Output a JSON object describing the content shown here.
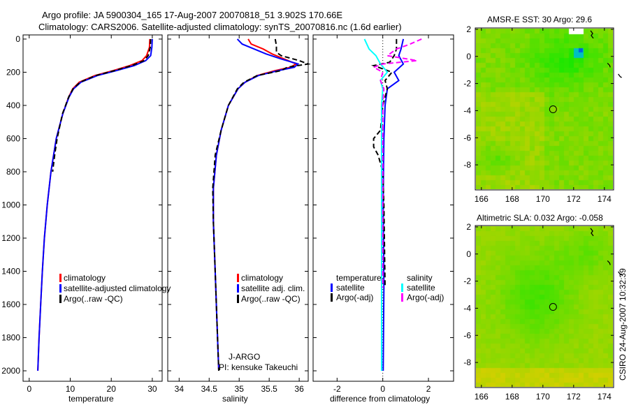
{
  "title_line1": "Argo profile: JA 5900304_165 17-Aug-2007 20070818_51 3.902S 170.66E",
  "title_line2": "Climatology: CARS2006. Satellite-adjusted climatology: synTS_20070816.nc (1.6d earlier)",
  "footer_stamp": "CSIRO 24-Aug-2007 10:32:39",
  "chart_data": [
    {
      "type": "line",
      "id": "temperature",
      "xlabel": "temperature",
      "ylabel": "",
      "xlim": [
        -1.5,
        32.4
      ],
      "ylim": [
        2063,
        -25
      ],
      "xticks": [
        0,
        10,
        20,
        30
      ],
      "yticks": [
        0,
        200,
        400,
        600,
        800,
        1000,
        1200,
        1400,
        1600,
        1800,
        2000
      ],
      "legend": [
        "climatology",
        "satellite-adjusted climatology",
        "Argo(..raw -QC)"
      ],
      "series": [
        {
          "name": "climatology",
          "color": "#ff0000",
          "dash": false,
          "depth": [
            0,
            50,
            100,
            130,
            160,
            190,
            220,
            260,
            300,
            350,
            450,
            600,
            800,
            1000,
            1200,
            1400,
            1600,
            1800,
            2000
          ],
          "values": [
            29.4,
            29.3,
            28.6,
            27.5,
            24.5,
            20.5,
            16,
            12.2,
            10.6,
            9.6,
            8.2,
            6.6,
            5.3,
            4.4,
            3.7,
            3.2,
            2.8,
            2.4,
            2.1
          ]
        },
        {
          "name": "satellite-adjusted climatology",
          "color": "#0000ff",
          "dash": false,
          "depth": [
            0,
            50,
            100,
            130,
            160,
            190,
            220,
            260,
            300,
            350,
            450,
            600,
            800,
            1000,
            1200,
            1400,
            1600,
            1800,
            2000
          ],
          "values": [
            30.0,
            29.9,
            29.6,
            28.4,
            25.6,
            21.2,
            16.6,
            12.6,
            10.8,
            9.7,
            8.2,
            6.6,
            5.3,
            4.4,
            3.7,
            3.2,
            2.8,
            2.4,
            2.1
          ]
        },
        {
          "name": "Argo(..raw -QC)",
          "color": "#000000",
          "dash": true,
          "depth": [
            0,
            50,
            100,
            130,
            160,
            190,
            220,
            260,
            300,
            350,
            450,
            600,
            700,
            800
          ],
          "values": [
            29.6,
            29.5,
            29.0,
            28.0,
            25.0,
            20.8,
            16.2,
            12.4,
            10.7,
            9.6,
            8.1,
            6.8,
            6.2,
            5.7
          ]
        }
      ]
    },
    {
      "type": "line",
      "id": "salinity",
      "xlabel": "salinity",
      "xlim": [
        33.81,
        36.15
      ],
      "ylim": [
        2063,
        -25
      ],
      "xticks": [
        34,
        34.5,
        35,
        35.5,
        36
      ],
      "legend": [
        "climatology",
        "satellite adj. clim.",
        "Argo(..raw -QC)"
      ],
      "annotation": [
        "J-ARGO",
        "PI: kensuke Takeuchi"
      ],
      "series": [
        {
          "name": "climatology",
          "color": "#ff0000",
          "dash": false,
          "depth": [
            0,
            30,
            60,
            90,
            120,
            150,
            170,
            190,
            220,
            260,
            300,
            400,
            550,
            700,
            900,
            1100,
            1400,
            1700,
            2000
          ],
          "values": [
            35.15,
            35.2,
            35.4,
            35.55,
            35.75,
            35.95,
            35.85,
            35.6,
            35.3,
            35.1,
            34.98,
            34.82,
            34.7,
            34.62,
            34.57,
            34.57,
            34.6,
            34.63,
            34.66
          ]
        },
        {
          "name": "satellite adj. clim.",
          "color": "#0000ff",
          "dash": false,
          "depth": [
            0,
            30,
            60,
            90,
            120,
            150,
            170,
            190,
            220,
            260,
            300,
            400,
            550,
            700,
            900,
            1100,
            1400,
            1700,
            2000
          ],
          "values": [
            34.97,
            35.05,
            35.25,
            35.45,
            35.7,
            35.98,
            35.92,
            35.65,
            35.32,
            35.1,
            34.98,
            34.82,
            34.7,
            34.62,
            34.57,
            34.57,
            34.6,
            34.63,
            34.66
          ]
        },
        {
          "name": "Argo(..raw -QC)",
          "color": "#000000",
          "dash": true,
          "depth": [
            0,
            40,
            80,
            100,
            130,
            150,
            170,
            190,
            220,
            260,
            300,
            400,
            550,
            700,
            900,
            1100,
            1400,
            1700,
            2000
          ],
          "values": [
            35.6,
            35.62,
            35.62,
            35.7,
            36.0,
            36.15,
            35.8,
            35.7,
            35.3,
            35.08,
            34.97,
            34.82,
            34.7,
            34.6,
            34.56,
            34.57,
            34.6,
            34.63,
            34.66
          ]
        }
      ]
    },
    {
      "type": "line",
      "id": "difference",
      "xlabel": "difference from climatology",
      "xlim": [
        -3.05,
        3.1
      ],
      "ylim": [
        2063,
        -25
      ],
      "xticks": [
        -2,
        0,
        2
      ],
      "legend_temperature_header": "temperature",
      "legend_salinity_header": "salinity",
      "legend": [
        "satellite",
        "Argo(-adj)",
        "satellite",
        "Argo(-adj)"
      ],
      "series": [
        {
          "name": "temperature satellite",
          "color": "#0000ff",
          "dash": false,
          "depth": [
            0,
            60,
            100,
            150,
            200,
            250,
            300,
            400,
            600,
            800,
            1000,
            1500,
            2000
          ],
          "values": [
            0.9,
            0.8,
            0.7,
            0.9,
            0.5,
            0.7,
            0.2,
            0.1,
            0.05,
            0.03,
            0.02,
            0.05,
            0.02
          ]
        },
        {
          "name": "temperature Argo(-adj)",
          "color": "#000000",
          "dash": true,
          "depth": [
            0,
            60,
            100,
            140,
            160,
            200,
            250,
            300,
            400,
            550,
            600,
            650,
            700,
            800,
            1000,
            1500
          ],
          "values": [
            0.6,
            0.6,
            0.5,
            0.3,
            -0.4,
            0.4,
            0.1,
            0.2,
            0.0,
            -0.1,
            -0.4,
            -0.4,
            -0.2,
            0.0,
            0.05,
            0.1
          ]
        },
        {
          "name": "salinity satellite",
          "color": "#00ffff",
          "dash": false,
          "depth": [
            0,
            60,
            100,
            150,
            200,
            250,
            300,
            400,
            600,
            800,
            1000,
            1500,
            2000
          ],
          "values": [
            -0.8,
            -0.6,
            -0.3,
            -0.1,
            0.2,
            -0.1,
            0.0,
            -0.05,
            -0.05,
            -0.05,
            -0.05,
            -0.05,
            -0.05
          ]
        },
        {
          "name": "salinity Argo(-adj)",
          "color": "#ff00ff",
          "dash": true,
          "depth": [
            0,
            30,
            60,
            100,
            130,
            150,
            170,
            200,
            250,
            300,
            400,
            800,
            1500
          ],
          "values": [
            1.7,
            1.2,
            0.6,
            0.2,
            1.5,
            0.0,
            -0.4,
            0.0,
            -0.1,
            0.05,
            0.0,
            0.0,
            0.0
          ]
        }
      ]
    },
    {
      "type": "heatmap",
      "id": "sst_map",
      "title": "AMSR-E SST: 30 Argo: 29.6",
      "xlim": [
        165.6,
        174.6
      ],
      "ylim": [
        -9.85,
        2.1
      ],
      "xticks": [
        166,
        168,
        170,
        172,
        174
      ],
      "yticks": [
        2,
        0,
        -2,
        -4,
        -6,
        -8
      ],
      "argo_position": {
        "lon": 170.66,
        "lat": -3.902
      }
    },
    {
      "type": "heatmap",
      "id": "sla_map",
      "title": "Altimetric SLA: 0.032 Argo: -0.058",
      "xlim": [
        165.6,
        174.6
      ],
      "ylim": [
        -9.85,
        2.1
      ],
      "xticks": [
        166,
        168,
        170,
        172,
        174
      ],
      "yticks": [
        2,
        0,
        -2,
        -4,
        -6,
        -8
      ],
      "argo_position": {
        "lon": 170.66,
        "lat": -3.902
      }
    }
  ]
}
